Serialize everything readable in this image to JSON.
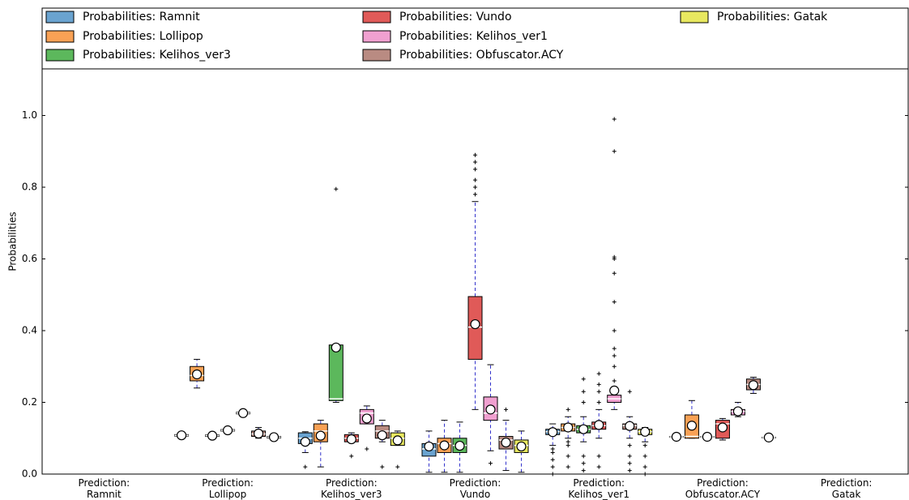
{
  "chart_data": {
    "type": "box",
    "y_label": "Probabilities",
    "categories": [
      "Prediction:\nRamnit",
      "Prediction:\nLollipop",
      "Prediction:\nKelihos_ver3",
      "Prediction:\nVundo",
      "Prediction:\nKelihos_ver1",
      "Prediction:\nObfuscator.ACY",
      "Prediction:\nGatak"
    ],
    "ylim": [
      0,
      1.13
    ],
    "yticks": [
      {
        "value": 0,
        "label": "0.0"
      },
      0.2,
      0.4,
      0.6,
      0.8,
      {
        "value": 1,
        "label": "1.0"
      }
    ],
    "series": [
      {
        "name": "Probabilities: Ramnit",
        "color": "#6aa3d0",
        "boxes": [
          null,
          {
            "low": 0.104,
            "q1": 0.106,
            "med": 0.108,
            "q3": 0.11,
            "high": 0.112,
            "mean": 0.108
          },
          {
            "low": 0.06,
            "q1": 0.085,
            "med": 0.1,
            "q3": 0.115,
            "high": 0.118,
            "mean": 0.09,
            "out": [
              0.02
            ]
          },
          {
            "low": 0.005,
            "q1": 0.05,
            "med": 0.07,
            "q3": 0.085,
            "high": 0.12,
            "mean": 0.077
          },
          {
            "low": 0.08,
            "q1": 0.11,
            "med": 0.118,
            "q3": 0.125,
            "high": 0.14,
            "mean": 0.117,
            "out": [
              0.0,
              0.02,
              0.04,
              0.06,
              0.07
            ]
          },
          {
            "low": 0.102,
            "q1": 0.103,
            "med": 0.104,
            "q3": 0.105,
            "high": 0.106,
            "mean": 0.104
          },
          null
        ]
      },
      {
        "name": "Probabilities: Lollipop",
        "color": "#f9a155",
        "boxes": [
          null,
          {
            "low": 0.24,
            "q1": 0.26,
            "med": 0.275,
            "q3": 0.3,
            "high": 0.32,
            "mean": 0.278
          },
          {
            "low": 0.02,
            "q1": 0.09,
            "med": 0.12,
            "q3": 0.14,
            "high": 0.15,
            "mean": 0.107
          },
          {
            "low": 0.005,
            "q1": 0.06,
            "med": 0.085,
            "q3": 0.1,
            "high": 0.15,
            "mean": 0.08
          },
          {
            "low": 0.1,
            "q1": 0.12,
            "med": 0.13,
            "q3": 0.14,
            "high": 0.16,
            "mean": 0.13,
            "out": [
              0.02,
              0.05,
              0.08,
              0.09,
              0.18
            ]
          },
          {
            "low": 0.1,
            "q1": 0.1,
            "med": 0.105,
            "q3": 0.165,
            "high": 0.205,
            "mean": 0.135
          },
          null
        ]
      },
      {
        "name": "Probabilities: Kelihos_ver3",
        "color": "#5cb85c",
        "boxes": [
          null,
          {
            "low": 0.103,
            "q1": 0.105,
            "med": 0.107,
            "q3": 0.109,
            "high": 0.111,
            "mean": 0.107
          },
          {
            "low": 0.2,
            "q1": 0.205,
            "med": 0.21,
            "q3": 0.36,
            "high": 0.36,
            "mean": 0.353,
            "out": [
              0.795
            ]
          },
          {
            "low": 0.005,
            "q1": 0.06,
            "med": 0.08,
            "q3": 0.1,
            "high": 0.145,
            "mean": 0.079
          },
          {
            "low": 0.09,
            "q1": 0.115,
            "med": 0.125,
            "q3": 0.135,
            "high": 0.16,
            "mean": 0.125,
            "out": [
              0.01,
              0.03,
              0.05,
              0.2,
              0.23,
              0.265
            ]
          },
          {
            "low": 0.102,
            "q1": 0.103,
            "med": 0.104,
            "q3": 0.105,
            "high": 0.106,
            "mean": 0.104
          },
          null
        ]
      },
      {
        "name": "Probabilities: Vundo",
        "color": "#e05a58",
        "boxes": [
          null,
          {
            "low": 0.118,
            "q1": 0.12,
            "med": 0.122,
            "q3": 0.124,
            "high": 0.126,
            "mean": 0.122
          },
          {
            "low": 0.09,
            "q1": 0.09,
            "med": 0.1,
            "q3": 0.11,
            "high": 0.115,
            "mean": 0.097,
            "out": [
              0.05
            ]
          },
          {
            "low": 0.18,
            "q1": 0.32,
            "med": 0.41,
            "q3": 0.495,
            "high": 0.76,
            "mean": 0.418,
            "out": [
              0.78,
              0.8,
              0.82,
              0.85,
              0.87,
              0.89
            ]
          },
          {
            "low": 0.1,
            "q1": 0.125,
            "med": 0.135,
            "q3": 0.145,
            "high": 0.18,
            "mean": 0.137,
            "out": [
              0.02,
              0.05,
              0.2,
              0.23,
              0.25,
              0.28
            ]
          },
          {
            "low": 0.095,
            "q1": 0.1,
            "med": 0.14,
            "q3": 0.15,
            "high": 0.155,
            "mean": 0.13
          },
          null
        ]
      },
      {
        "name": "Probabilities: Kelihos_ver1",
        "color": "#f0a0d0",
        "boxes": [
          null,
          {
            "low": 0.166,
            "q1": 0.168,
            "med": 0.17,
            "q3": 0.172,
            "high": 0.174,
            "mean": 0.17
          },
          {
            "low": 0.14,
            "q1": 0.14,
            "med": 0.17,
            "q3": 0.18,
            "high": 0.19,
            "mean": 0.155,
            "out": [
              0.07
            ]
          },
          {
            "low": 0.065,
            "q1": 0.15,
            "med": 0.17,
            "q3": 0.215,
            "high": 0.305,
            "mean": 0.18,
            "out": [
              0.03
            ]
          },
          {
            "low": 0.18,
            "q1": 0.2,
            "med": 0.21,
            "q3": 0.22,
            "high": 0.24,
            "mean": 0.233,
            "out": [
              0.26,
              0.3,
              0.33,
              0.35,
              0.4,
              0.48,
              0.56,
              0.6,
              0.605,
              0.9,
              0.99
            ]
          },
          {
            "low": 0.16,
            "q1": 0.165,
            "med": 0.175,
            "q3": 0.18,
            "high": 0.2,
            "mean": 0.175
          },
          null
        ]
      },
      {
        "name": "Probabilities: Obfuscator.ACY",
        "color": "#b98b82",
        "boxes": [
          null,
          {
            "low": 0.1,
            "q1": 0.105,
            "med": 0.112,
            "q3": 0.12,
            "high": 0.13,
            "mean": 0.113
          },
          {
            "low": 0.09,
            "q1": 0.1,
            "med": 0.12,
            "q3": 0.135,
            "high": 0.15,
            "mean": 0.108,
            "out": [
              0.02
            ]
          },
          {
            "low": 0.01,
            "q1": 0.07,
            "med": 0.095,
            "q3": 0.105,
            "high": 0.15,
            "mean": 0.088,
            "out": [
              0.18
            ]
          },
          {
            "low": 0.1,
            "q1": 0.125,
            "med": 0.135,
            "q3": 0.14,
            "high": 0.16,
            "mean": 0.134,
            "out": [
              0.01,
              0.03,
              0.05,
              0.08,
              0.23
            ]
          },
          {
            "low": 0.225,
            "q1": 0.235,
            "med": 0.25,
            "q3": 0.265,
            "high": 0.27,
            "mean": 0.248
          },
          null
        ]
      },
      {
        "name": "Probabilities: Gatak",
        "color": "#e8e860",
        "boxes": [
          null,
          {
            "low": 0.099,
            "q1": 0.101,
            "med": 0.103,
            "q3": 0.105,
            "high": 0.107,
            "mean": 0.103
          },
          {
            "low": 0.08,
            "q1": 0.08,
            "med": 0.1,
            "q3": 0.115,
            "high": 0.12,
            "mean": 0.094,
            "out": [
              0.02
            ]
          },
          {
            "low": 0.005,
            "q1": 0.06,
            "med": 0.08,
            "q3": 0.095,
            "high": 0.12,
            "mean": 0.077
          },
          {
            "low": 0.09,
            "q1": 0.11,
            "med": 0.118,
            "q3": 0.125,
            "high": 0.13,
            "mean": 0.118,
            "out": [
              0.0,
              0.02,
              0.05,
              0.08
            ]
          },
          {
            "low": 0.1,
            "q1": 0.101,
            "med": 0.102,
            "q3": 0.103,
            "high": 0.104,
            "mean": 0.102
          },
          null
        ]
      }
    ]
  }
}
